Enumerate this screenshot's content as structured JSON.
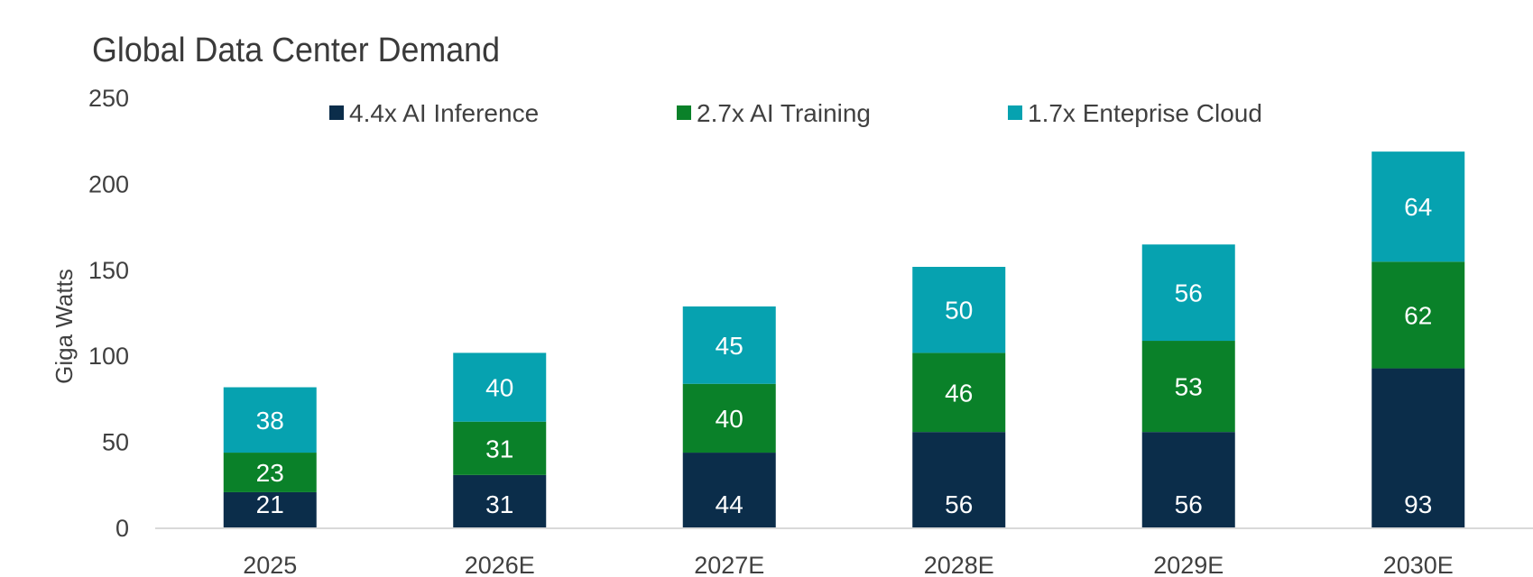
{
  "chart_data": {
    "type": "bar",
    "stacked": true,
    "title": "Global Data Center Demand",
    "xlabel": "",
    "ylabel": "Giga Watts",
    "ylim": [
      0,
      250
    ],
    "yticks": [
      "0",
      "50",
      "100",
      "150",
      "200",
      "250"
    ],
    "grid": false,
    "legend_position": "top",
    "categories": [
      "2025",
      "2026E",
      "2027E",
      "2028E",
      "2029E",
      "2030E"
    ],
    "series": [
      {
        "name": "4.4x AI Inference",
        "color": "#0b2d4a",
        "values": [
          21,
          31,
          44,
          56,
          56,
          93
        ]
      },
      {
        "name": "2.7x AI Training",
        "color": "#0a8129",
        "values": [
          23,
          31,
          40,
          46,
          53,
          62
        ]
      },
      {
        "name": "1.7x Enteprise Cloud",
        "color": "#06a2b0",
        "values": [
          38,
          40,
          45,
          50,
          56,
          64
        ]
      }
    ],
    "totals": [
      82,
      102,
      129,
      152,
      165,
      219
    ],
    "label_color": "#ffffff",
    "axis_text_color": "#404040",
    "baseline_color": "#d9d9d9"
  }
}
